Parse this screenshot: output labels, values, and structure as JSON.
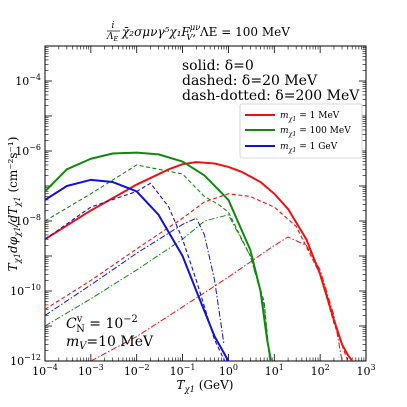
{
  "chart_data": {
    "type": "line",
    "title": {
      "coef_num": "i",
      "coef_den": "Λ",
      "coef_den_sub": "E",
      "operator_text": "χ̄₂σμνγ⁵χ₁F",
      "operator_sup": "μν",
      "operator_sub": "V",
      "scale_text": ", ΛE = 100 MeV"
    },
    "xlabel": {
      "main": "T",
      "sub": "χ1",
      "unit": " (GeV)"
    },
    "ylabel": {
      "main": "T",
      "sub1": "χ1",
      "mid": "dφ",
      "sub2": "χ1",
      "over": "/dT",
      "sub3": "χ1",
      "unit": " (cm⁻²s⁻¹)"
    },
    "x_scale": "log",
    "y_scale": "log",
    "xlim": [
      0.0001,
      1000
    ],
    "ylim": [
      1e-12,
      0.001
    ],
    "x_ticks": [
      {
        "base": "10",
        "exp": "−4",
        "v": -4
      },
      {
        "base": "10",
        "exp": "−3",
        "v": -3
      },
      {
        "base": "10",
        "exp": "−2",
        "v": -2
      },
      {
        "base": "10",
        "exp": "−1",
        "v": -1
      },
      {
        "base": "10",
        "exp": "0",
        "v": 0
      },
      {
        "base": "10",
        "exp": "1",
        "v": 1
      },
      {
        "base": "10",
        "exp": "2",
        "v": 2
      },
      {
        "base": "10",
        "exp": "3",
        "v": 3
      }
    ],
    "y_ticks": [
      {
        "base": "10",
        "exp": "−12",
        "v": -12
      },
      {
        "base": "10",
        "exp": "−10",
        "v": -10
      },
      {
        "base": "10",
        "exp": "−8",
        "v": -8
      },
      {
        "base": "10",
        "exp": "−6",
        "v": -6
      },
      {
        "base": "10",
        "exp": "−4",
        "v": -4
      }
    ],
    "linestyle_notes": [
      "solid: δ=0",
      "dashed: δ=20 MeV",
      "dash-dotted: δ=200 MeV"
    ],
    "legend": {
      "placement": "upper-right",
      "entries": [
        {
          "symbol": "m",
          "sub": "χ1",
          "value": " = 1  MeV",
          "color": "#ee1111"
        },
        {
          "symbol": "m",
          "sub": "χ1",
          "value": " = 100  MeV",
          "color": "#118811"
        },
        {
          "symbol": "m",
          "sub": "χ1",
          "value": " = 1  GeV",
          "color": "#1111dd"
        }
      ]
    },
    "annotations": {
      "coupling": {
        "symbol": "C",
        "sup": "v",
        "sub": "N",
        "value": " = 10",
        "exp": "−2"
      },
      "mediator": {
        "symbol": "m",
        "sub": "V",
        "value": "=10 MeV"
      }
    },
    "series": [
      {
        "color": "#ee1111",
        "style": "solid",
        "x": [
          0.0001,
          0.001,
          0.01,
          0.05,
          0.1,
          0.2,
          0.5,
          1,
          2,
          5,
          10,
          20,
          50,
          100,
          200,
          300,
          400,
          500
        ],
        "y": [
          3e-09,
          2e-08,
          1.1e-07,
          3e-07,
          4.2e-07,
          4.8e-07,
          4.4e-07,
          3.5e-07,
          2.5e-07,
          1.3e-07,
          6e-08,
          2.2e-08,
          3e-09,
          3e-10,
          1.5e-11,
          3e-12,
          1.5e-12,
          1e-12
        ]
      },
      {
        "color": "#ee1111",
        "style": "dashed",
        "x": [
          0.0001,
          0.001,
          0.01,
          0.1,
          0.3,
          1,
          3,
          10,
          30,
          100,
          200,
          400
        ],
        "y": [
          3e-11,
          2e-10,
          1.6e-09,
          1.2e-08,
          3.5e-08,
          6e-08,
          5e-08,
          2.5e-08,
          7e-09,
          3e-10,
          1.2e-11,
          1e-12
        ]
      },
      {
        "color": "#ee1111",
        "style": "dashdot",
        "x": [
          0.001,
          0.01,
          0.1,
          1,
          10,
          20,
          50,
          100,
          200,
          300
        ],
        "y": [
          1e-12,
          5e-12,
          3.5e-11,
          2.5e-10,
          2e-09,
          3.5e-09,
          2e-09,
          4e-10,
          2e-11,
          1e-12
        ]
      },
      {
        "color": "#118811",
        "style": "solid",
        "x": [
          0.0001,
          0.0003,
          0.001,
          0.003,
          0.01,
          0.03,
          0.1,
          0.3,
          1,
          3,
          5,
          7,
          8.5
        ],
        "y": [
          7e-08,
          3e-07,
          6e-07,
          8.5e-07,
          9e-07,
          8e-07,
          5e-07,
          2e-07,
          4e-08,
          1.5e-09,
          1e-10,
          4e-12,
          1e-12
        ]
      },
      {
        "color": "#118811",
        "style": "dashed",
        "x": [
          0.0001,
          0.001,
          0.01,
          0.1,
          0.3,
          0.6,
          1,
          3,
          6,
          8
        ],
        "y": [
          1e-08,
          6e-08,
          4e-07,
          2.2e-07,
          5e-08,
          3e-08,
          1.8e-08,
          1e-09,
          5e-11,
          1e-12
        ]
      },
      {
        "color": "#118811",
        "style": "dashdot",
        "x": [
          0.0001,
          0.001,
          0.01,
          0.1,
          0.3,
          1,
          3,
          6,
          8
        ],
        "y": [
          1e-11,
          6e-11,
          4e-10,
          3e-09,
          1e-08,
          1.5e-08,
          1e-09,
          4e-11,
          1e-12
        ]
      },
      {
        "color": "#1111dd",
        "style": "solid",
        "x": [
          0.0001,
          0.0003,
          0.001,
          0.003,
          0.01,
          0.03,
          0.1,
          0.2,
          0.5,
          1,
          1.5,
          2
        ],
        "y": [
          4e-08,
          1e-07,
          1.5e-07,
          1.3e-07,
          7e-08,
          1.5e-08,
          1e-09,
          1e-10,
          5e-12,
          1e-12,
          8e-13,
          6e-13
        ]
      },
      {
        "color": "#1111dd",
        "style": "dashed",
        "x": [
          0.0001,
          0.001,
          0.01,
          0.02,
          0.05,
          0.1,
          0.2,
          0.5,
          1
        ],
        "y": [
          3e-09,
          2.5e-08,
          7e-08,
          1.2e-07,
          2.5e-08,
          3e-09,
          2e-10,
          4e-12,
          6e-13
        ]
      },
      {
        "color": "#1111dd",
        "style": "dashdot",
        "x": [
          0.0001,
          0.001,
          0.01,
          0.1,
          0.2,
          0.3,
          0.5,
          0.8
        ],
        "y": [
          2e-11,
          1.5e-10,
          1.2e-09,
          8e-09,
          1.2e-08,
          4e-09,
          2e-10,
          3e-12
        ]
      }
    ]
  }
}
